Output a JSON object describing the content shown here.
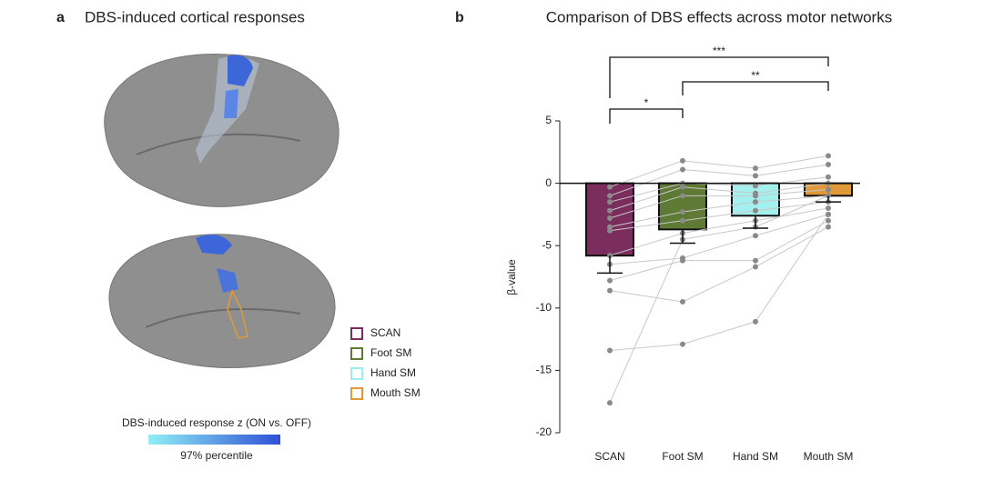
{
  "panel_a": {
    "letter": "a",
    "title": "DBS-induced cortical responses",
    "legend": [
      {
        "name": "SCAN",
        "color": "#7b2d5e"
      },
      {
        "name": "Foot SM",
        "color": "#5e7a35"
      },
      {
        "name": "Hand SM",
        "color": "#9eeeee"
      },
      {
        "name": "Mouth SM",
        "color": "#e19a3a"
      }
    ],
    "colorbar_label": "DBS-induced response z (ON vs. OFF)",
    "colorbar_caption": "97% percentile",
    "colorbar_colors": [
      "#8ff0f5",
      "#2f4fd6"
    ]
  },
  "chart_data": {
    "type": "bar",
    "letter": "b",
    "title": "Comparison of DBS effects across motor networks",
    "ylabel": "β-value",
    "categories": [
      "SCAN",
      "Foot SM",
      "Hand SM",
      "Mouth SM"
    ],
    "values": [
      -5.8,
      -3.7,
      -2.6,
      -1.0
    ],
    "errors": [
      1.4,
      1.1,
      1.0,
      0.5
    ],
    "colors": [
      "#7b2d5e",
      "#5e7a35",
      "#a4f0ef",
      "#e19a3a"
    ],
    "points": [
      [
        -0.3,
        1.8,
        1.2,
        2.2
      ],
      [
        -1.0,
        1.1,
        0.6,
        1.5
      ],
      [
        -1.5,
        0.0,
        -0.2,
        0.5
      ],
      [
        -2.2,
        -0.3,
        -0.8,
        0.0
      ],
      [
        -2.8,
        -1.0,
        -1.0,
        -0.5
      ],
      [
        -3.5,
        -2.3,
        -1.5,
        -1.0
      ],
      [
        -3.8,
        -3.0,
        -2.2,
        -1.5
      ],
      [
        -5.8,
        -4.0,
        -3.0,
        -2.0
      ],
      [
        -6.5,
        -6.0,
        -4.2,
        -2.5
      ],
      [
        -7.8,
        -6.2,
        -6.2,
        -3.0
      ],
      [
        -8.6,
        -9.5,
        -6.7,
        -3.5
      ],
      [
        -13.4,
        -12.9,
        -11.1,
        -2.5
      ],
      [
        -17.6,
        -4.5,
        -3.5,
        -1.0
      ]
    ],
    "significance": [
      {
        "from": 0,
        "to": 3,
        "label": "***"
      },
      {
        "from": 1,
        "to": 3,
        "label": "**"
      },
      {
        "from": 0,
        "to": 1,
        "label": "*"
      }
    ],
    "ylim": [
      -20,
      5
    ],
    "yticks": [
      -20,
      -15,
      -10,
      -5,
      0,
      5
    ]
  }
}
